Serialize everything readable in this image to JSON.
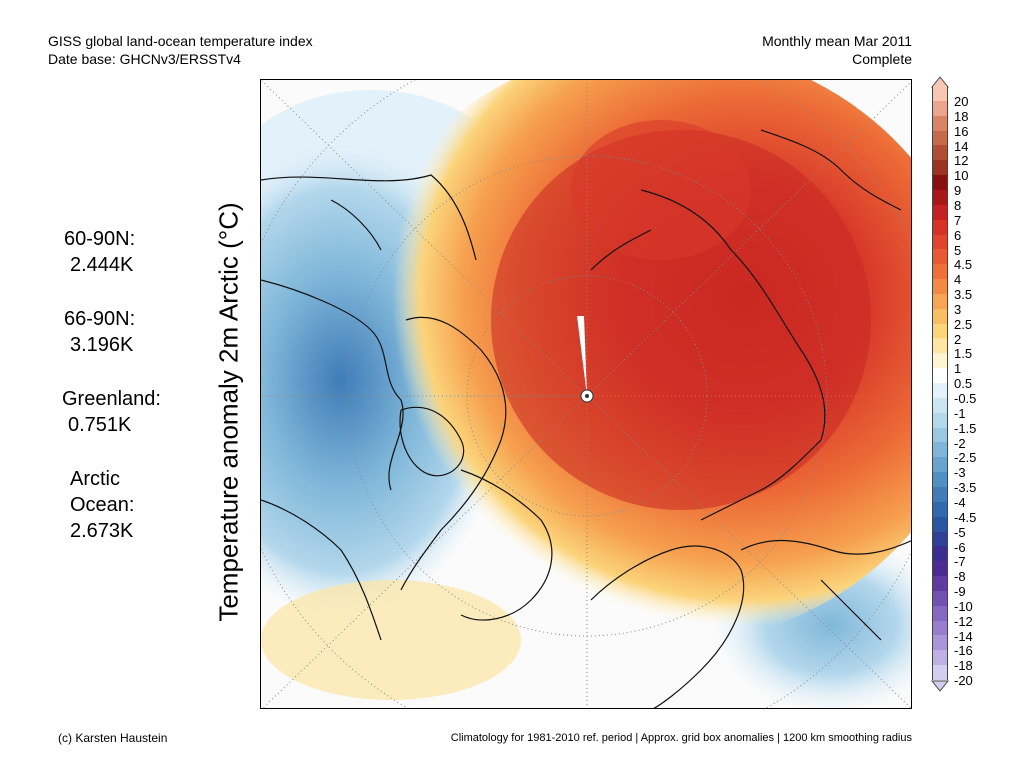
{
  "header": {
    "left_line1": "GISS global land-ocean temperature index",
    "left_line2": "Date base: GHCNv3/ERSSTv4",
    "right_line1": "Monthly mean Mar 2011",
    "right_line2": "Complete"
  },
  "y_label": "Temperature anomaly 2m Arctic (°C)",
  "stats": [
    {
      "label": "60-90N:",
      "value": "2.444K"
    },
    {
      "label": "66-90N:",
      "value": "3.196K"
    },
    {
      "label": "Greenland:",
      "value": "0.751K"
    },
    {
      "label_lines": [
        "Arctic",
        "Ocean:"
      ],
      "value": "2.673K"
    }
  ],
  "colorbar": {
    "labels": [
      "20",
      "18",
      "16",
      "14",
      "12",
      "10",
      "9",
      "8",
      "7",
      "6",
      "5",
      "4.5",
      "4",
      "3.5",
      "3",
      "2.5",
      "2",
      "1.5",
      "1",
      "0.5",
      "-0.5",
      "-1",
      "-1.5",
      "-2",
      "-2.5",
      "-3",
      "-3.5",
      "-4",
      "-4.5",
      "-5",
      "-6",
      "-7",
      "-8",
      "-9",
      "-10",
      "-12",
      "-14",
      "-16",
      "-18",
      "-20"
    ],
    "colors": [
      "#f7c7b4",
      "#eba58c",
      "#d98565",
      "#c56a4a",
      "#b04e33",
      "#9b3320",
      "#8a1010",
      "#a81818",
      "#c42222",
      "#d63327",
      "#e2452d",
      "#e85a32",
      "#ee6f38",
      "#f38a43",
      "#f7a552",
      "#f9bd62",
      "#fbd47b",
      "#fce6a2",
      "#fdf4d2",
      "#ffffff",
      "#e3f1fa",
      "#cce5f3",
      "#b3d7ec",
      "#9ac8e3",
      "#80b7d9",
      "#68a4cf",
      "#5190c4",
      "#3f7cb8",
      "#3268ac",
      "#2a55a0",
      "#303f98",
      "#3a2f91",
      "#4d2b94",
      "#5f3aa0",
      "#7252b0",
      "#8568c0",
      "#987ecd",
      "#ab95d9",
      "#bfb0e4",
      "#d5cdef"
    ]
  },
  "footer": {
    "left": "(c) Karsten Haustein",
    "right": "Climatology for 1981-2010 ref. period | Approx. grid box anomalies | 1200 km smoothing radius"
  }
}
